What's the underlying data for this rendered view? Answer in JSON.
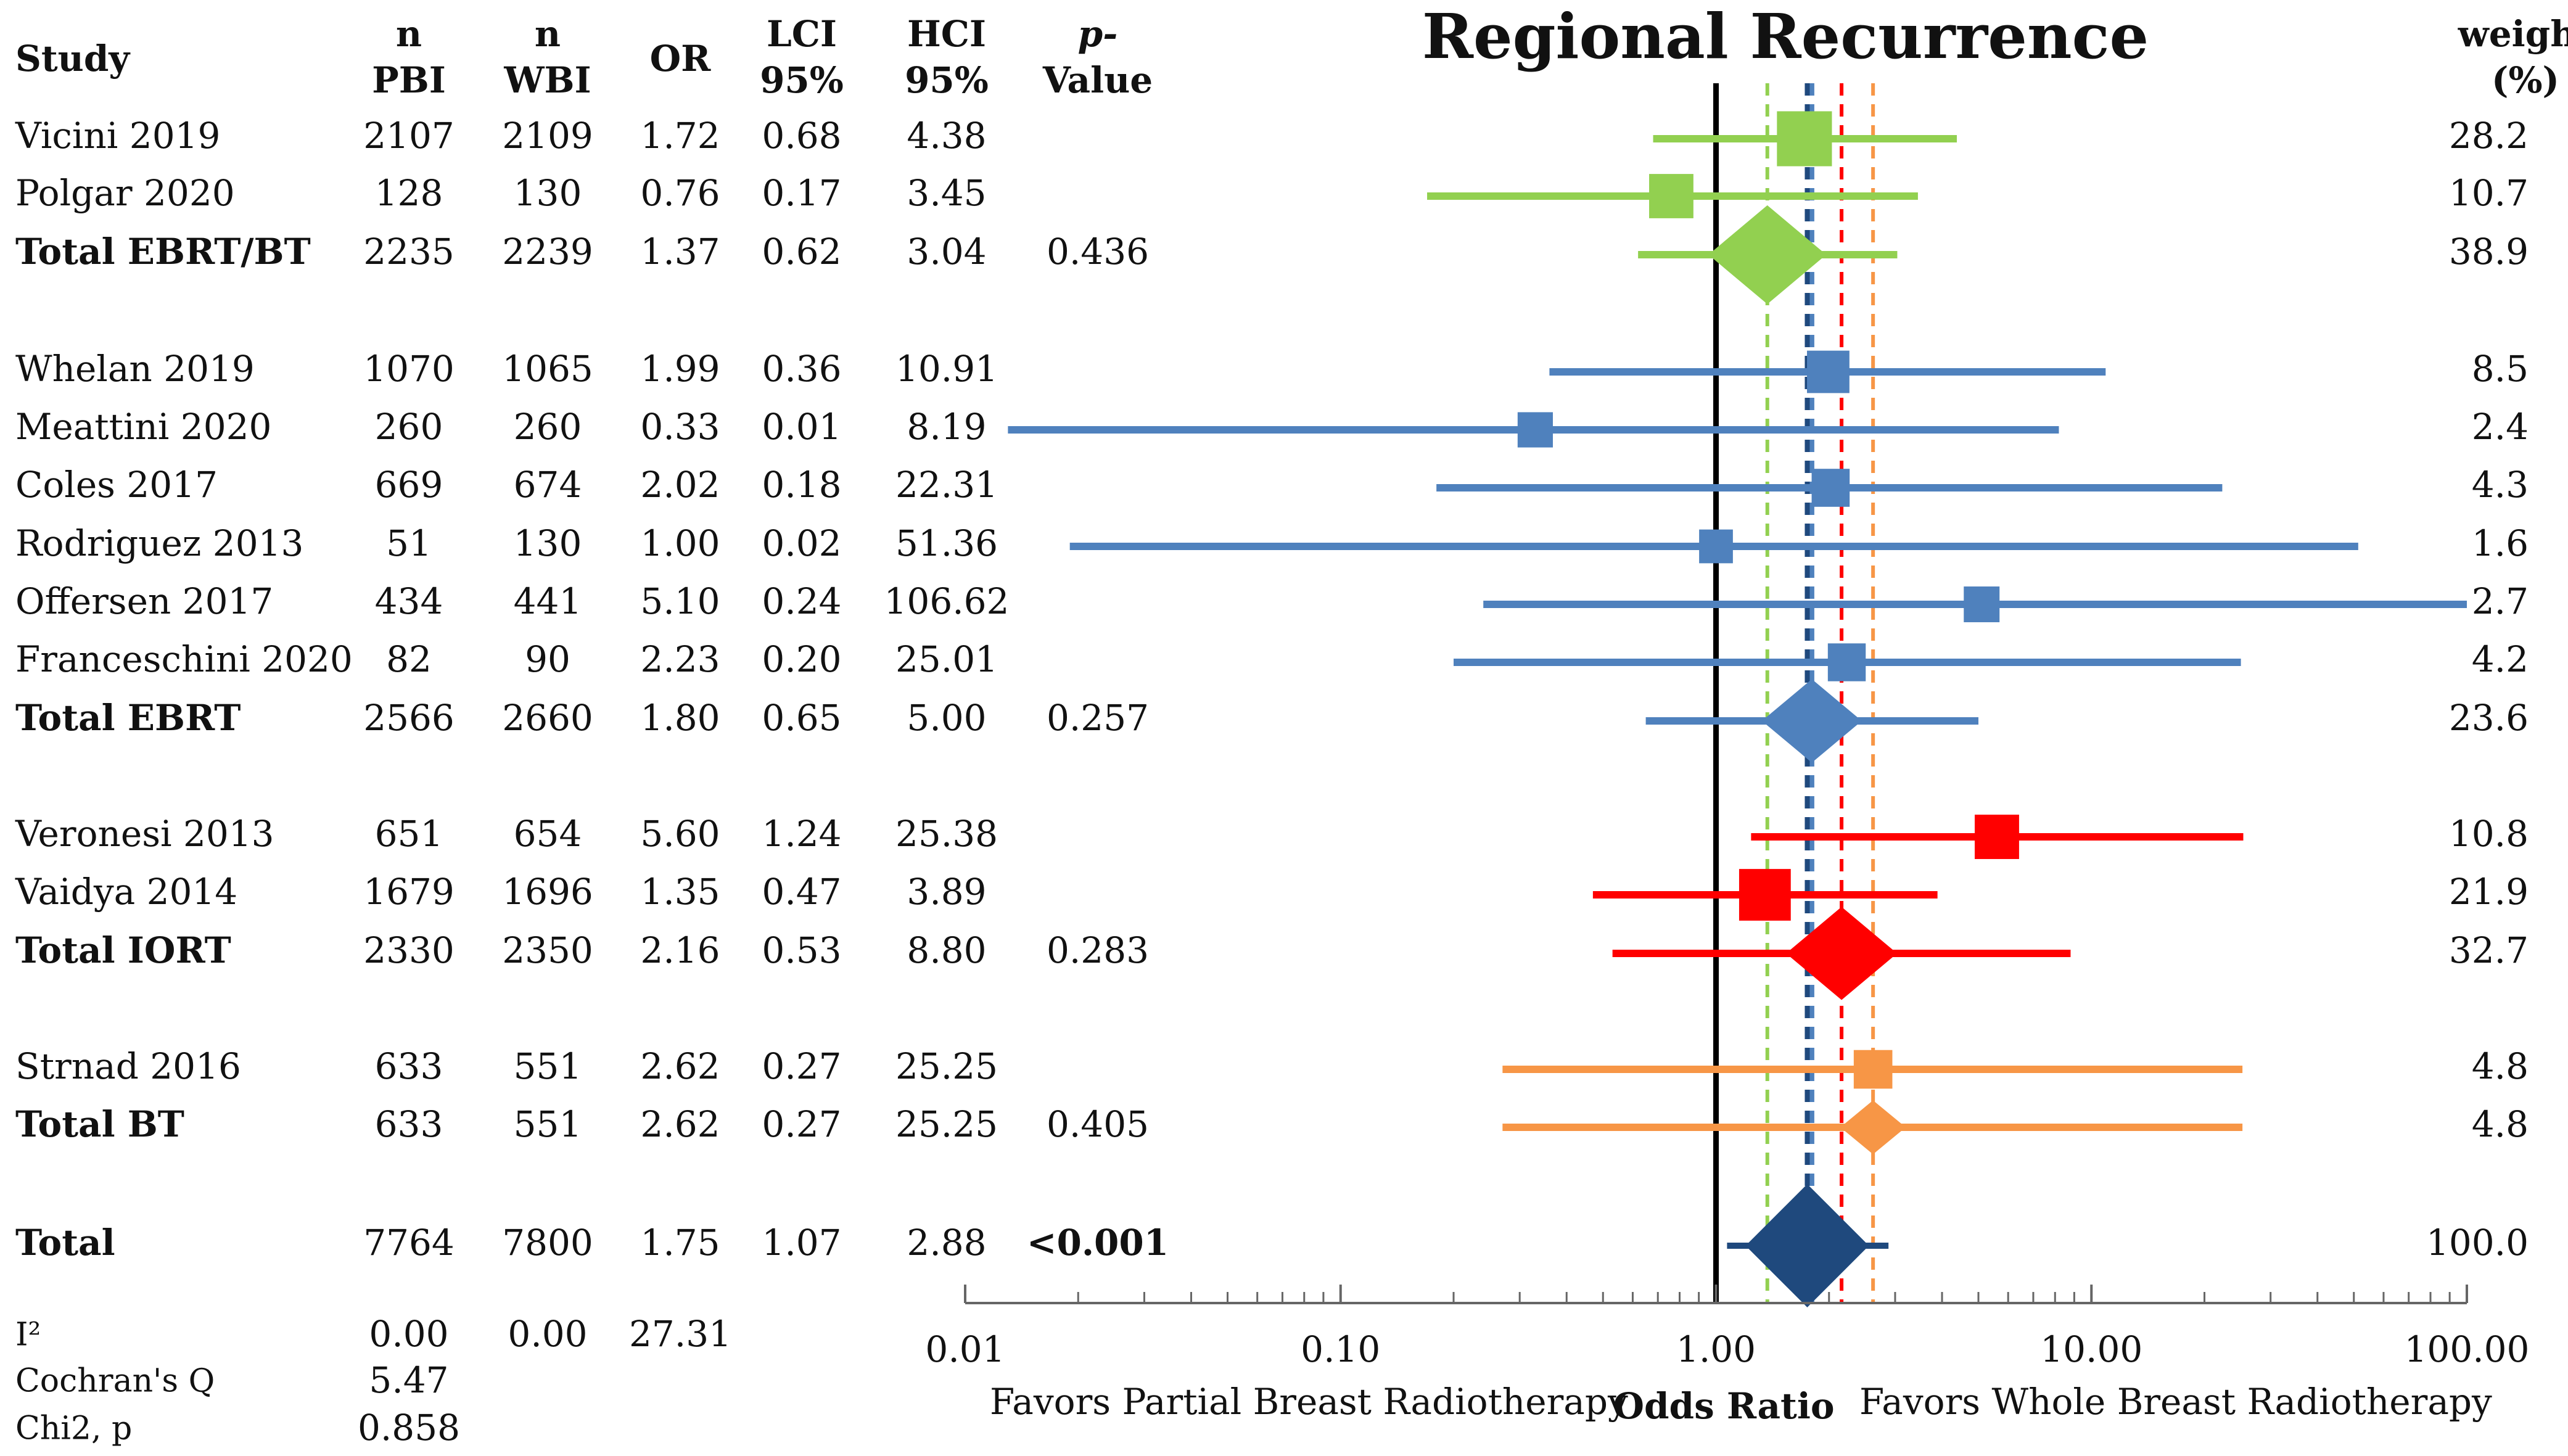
{
  "chart_data": {
    "type": "forest",
    "title": "Regional Recurrence",
    "headers": {
      "study": "Study",
      "n_pbi": [
        "n",
        "PBI"
      ],
      "n_wbi": [
        "n",
        "WBI"
      ],
      "or": "OR",
      "lci": [
        "LCI",
        "95%"
      ],
      "hci": [
        "HCI",
        "95%"
      ],
      "p": [
        "p-",
        "Value"
      ],
      "weight": [
        "weight",
        "(%)"
      ]
    },
    "xscale": "log",
    "xlim": [
      0.01,
      100
    ],
    "xticks": [
      "0.01",
      "0.10",
      "1.00",
      "10.00",
      "100.00"
    ],
    "xlabel": "Odds Ratio",
    "left_label": "Favors Partial Breast Radiotherapy",
    "right_label": "Favors Whole Breast Radiotherapy",
    "reference_line": 1,
    "colors": {
      "ebrt_bt": "#92d050",
      "ebrt": "#4f81bd",
      "iort": "#ff0000",
      "bt": "#f79646",
      "overall": "#1f497d"
    },
    "rows": [
      {
        "study": "Vicini 2019",
        "n_pbi": "2107",
        "n_wbi": "2109",
        "or": "1.72",
        "lci": "0.68",
        "hci": "4.38",
        "p": "",
        "weight": "28.2",
        "kind": "study",
        "group": "ebrt_bt",
        "or_v": 1.72,
        "lci_v": 0.68,
        "hci_v": 4.38,
        "w_v": 28.2
      },
      {
        "study": "Polgar 2020",
        "n_pbi": "128",
        "n_wbi": "130",
        "or": "0.76",
        "lci": "0.17",
        "hci": "3.45",
        "p": "",
        "weight": "10.7",
        "kind": "study",
        "group": "ebrt_bt",
        "or_v": 0.76,
        "lci_v": 0.17,
        "hci_v": 3.45,
        "w_v": 10.7
      },
      {
        "study": "Total EBRT/BT",
        "n_pbi": "2235",
        "n_wbi": "2239",
        "or": "1.37",
        "lci": "0.62",
        "hci": "3.04",
        "p": "0.436",
        "weight": "38.9",
        "kind": "total",
        "group": "ebrt_bt",
        "or_v": 1.37,
        "lci_v": 0.62,
        "hci_v": 3.04,
        "w_v": 38.9
      },
      {
        "study": "Whelan 2019",
        "n_pbi": "1070",
        "n_wbi": "1065",
        "or": "1.99",
        "lci": "0.36",
        "hci": "10.91",
        "p": "",
        "weight": "8.5",
        "kind": "study",
        "group": "ebrt",
        "or_v": 1.99,
        "lci_v": 0.36,
        "hci_v": 10.91,
        "w_v": 8.5
      },
      {
        "study": "Meattini 2020",
        "n_pbi": "260",
        "n_wbi": "260",
        "or": "0.33",
        "lci": "0.01",
        "hci": "8.19",
        "p": "",
        "weight": "2.4",
        "kind": "study",
        "group": "ebrt",
        "or_v": 0.33,
        "lci_v": 0.013,
        "hci_v": 8.19,
        "w_v": 2.4
      },
      {
        "study": "Coles 2017",
        "n_pbi": "669",
        "n_wbi": "674",
        "or": "2.02",
        "lci": "0.18",
        "hci": "22.31",
        "p": "",
        "weight": "4.3",
        "kind": "study",
        "group": "ebrt",
        "or_v": 2.02,
        "lci_v": 0.18,
        "hci_v": 22.31,
        "w_v": 4.3
      },
      {
        "study": "Rodriguez 2013",
        "n_pbi": "51",
        "n_wbi": "130",
        "or": "1.00",
        "lci": "0.02",
        "hci": "51.36",
        "p": "",
        "weight": "1.6",
        "kind": "study",
        "group": "ebrt",
        "or_v": 1.0,
        "lci_v": 0.019,
        "hci_v": 51.36,
        "w_v": 1.6
      },
      {
        "study": "Offersen 2017",
        "n_pbi": "434",
        "n_wbi": "441",
        "or": "5.10",
        "lci": "0.24",
        "hci": "106.62",
        "p": "",
        "weight": "2.7",
        "kind": "study",
        "group": "ebrt",
        "or_v": 5.1,
        "lci_v": 0.24,
        "hci_v": 106.62,
        "w_v": 2.7
      },
      {
        "study": "Franceschini 2020",
        "n_pbi": "82",
        "n_wbi": "90",
        "or": "2.23",
        "lci": "0.20",
        "hci": "25.01",
        "p": "",
        "weight": "4.2",
        "kind": "study",
        "group": "ebrt",
        "or_v": 2.23,
        "lci_v": 0.2,
        "hci_v": 25.01,
        "w_v": 4.2
      },
      {
        "study": "Total EBRT",
        "n_pbi": "2566",
        "n_wbi": "2660",
        "or": "1.80",
        "lci": "0.65",
        "hci": "5.00",
        "p": "0.257",
        "weight": "23.6",
        "kind": "total",
        "group": "ebrt",
        "or_v": 1.8,
        "lci_v": 0.65,
        "hci_v": 5.0,
        "w_v": 23.6
      },
      {
        "study": "Veronesi 2013",
        "n_pbi": "651",
        "n_wbi": "654",
        "or": "5.60",
        "lci": "1.24",
        "hci": "25.38",
        "p": "",
        "weight": "10.8",
        "kind": "study",
        "group": "iort",
        "or_v": 5.6,
        "lci_v": 1.24,
        "hci_v": 25.38,
        "w_v": 10.8
      },
      {
        "study": "Vaidya 2014",
        "n_pbi": "1679",
        "n_wbi": "1696",
        "or": "1.35",
        "lci": "0.47",
        "hci": "3.89",
        "p": "",
        "weight": "21.9",
        "kind": "study",
        "group": "iort",
        "or_v": 1.35,
        "lci_v": 0.47,
        "hci_v": 3.89,
        "w_v": 21.9
      },
      {
        "study": "Total IORT",
        "n_pbi": "2330",
        "n_wbi": "2350",
        "or": "2.16",
        "lci": "0.53",
        "hci": "8.80",
        "p": "0.283",
        "weight": "32.7",
        "kind": "total",
        "group": "iort",
        "or_v": 2.16,
        "lci_v": 0.53,
        "hci_v": 8.8,
        "w_v": 32.7
      },
      {
        "study": "Strnad 2016",
        "n_pbi": "633",
        "n_wbi": "551",
        "or": "2.62",
        "lci": "0.27",
        "hci": "25.25",
        "p": "",
        "weight": "4.8",
        "kind": "study",
        "group": "bt",
        "or_v": 2.62,
        "lci_v": 0.27,
        "hci_v": 25.25,
        "w_v": 4.8
      },
      {
        "study": "Total BT",
        "n_pbi": "633",
        "n_wbi": "551",
        "or": "2.62",
        "lci": "0.27",
        "hci": "25.25",
        "p": "0.405",
        "weight": "4.8",
        "kind": "total",
        "group": "bt",
        "or_v": 2.62,
        "lci_v": 0.27,
        "hci_v": 25.25,
        "w_v": 4.8
      },
      {
        "study": "Total",
        "n_pbi": "7764",
        "n_wbi": "7800",
        "or": "1.75",
        "lci": "1.07",
        "hci": "2.88",
        "p": "<0.001",
        "weight": "100.0",
        "kind": "overall",
        "group": "overall",
        "or_v": 1.75,
        "lci_v": 1.07,
        "hci_v": 2.88,
        "w_v": 100.0
      }
    ],
    "vlines": [
      {
        "x": 1.37,
        "color": "#92d050"
      },
      {
        "x": 1.8,
        "color": "#4f81bd"
      },
      {
        "x": 2.16,
        "color": "#ff0000"
      },
      {
        "x": 2.62,
        "color": "#f79646"
      },
      {
        "x": 1.75,
        "color": "#1f497d"
      }
    ],
    "heterogeneity": [
      {
        "label": "I²",
        "values": [
          "0.00",
          "0.00",
          "27.31"
        ]
      },
      {
        "label": "Cochran's Q",
        "values": [
          "5.47"
        ]
      },
      {
        "label": "Chi2, p",
        "values": [
          "0.858"
        ]
      }
    ]
  }
}
